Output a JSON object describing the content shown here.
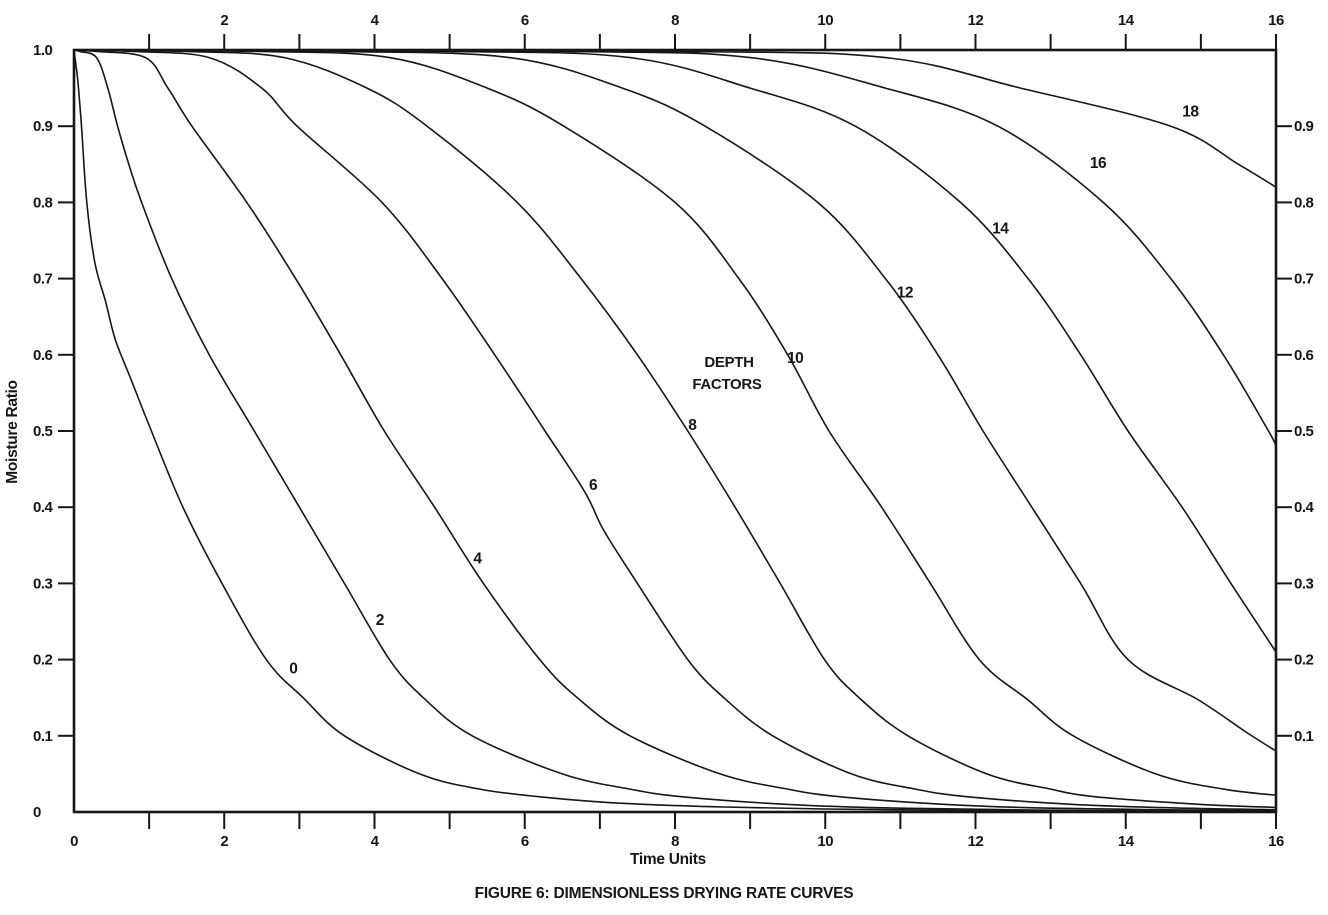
{
  "page": {
    "background": "#ffffff",
    "ink": "#161616"
  },
  "figure": {
    "caption": "FIGURE 6: DIMENSIONLESS DRYING RATE CURVES"
  },
  "chart_data": {
    "type": "line",
    "title": "FIGURE 6: DIMENSIONLESS DRYING RATE CURVES",
    "xlabel": "Time Units",
    "ylabel": "Moisture Ratio",
    "xlim": [
      0,
      16
    ],
    "ylim": [
      0,
      1
    ],
    "grid": false,
    "legend": "none",
    "x_minor_tick_step": 1,
    "x_tick_labels_bottom": [
      "0",
      "2",
      "4",
      "6",
      "8",
      "10",
      "12",
      "14",
      "16"
    ],
    "x_tick_values_bottom": [
      0,
      2,
      4,
      6,
      8,
      10,
      12,
      14,
      16
    ],
    "x_tick_labels_top": [
      "2",
      "4",
      "6",
      "8",
      "10",
      "12",
      "14",
      "16"
    ],
    "x_tick_values_top": [
      2,
      4,
      6,
      8,
      10,
      12,
      14,
      16
    ],
    "y_minor_tick_values": [
      0.1,
      0.2,
      0.3,
      0.4,
      0.5,
      0.6,
      0.7,
      0.8,
      0.9
    ],
    "y_tick_labels_left": [
      {
        "label": "1.0",
        "value": 1.0
      },
      {
        "label": "0.9",
        "value": 0.9
      },
      {
        "label": "0.8",
        "value": 0.8
      },
      {
        "label": "0.7",
        "value": 0.7
      },
      {
        "label": "0.6",
        "value": 0.6
      },
      {
        "label": "0.5",
        "value": 0.5
      },
      {
        "label": "0.4",
        "value": 0.4
      },
      {
        "label": "0.3",
        "value": 0.3
      },
      {
        "label": "0.2",
        "value": 0.2
      },
      {
        "label": "0.1",
        "value": 0.1
      },
      {
        "label": "0",
        "value": 0.0
      }
    ],
    "y_tick_labels_right": [
      {
        "label": "0.9",
        "value": 0.9
      },
      {
        "label": "0.8",
        "value": 0.8
      },
      {
        "label": "0.7",
        "value": 0.7
      },
      {
        "label": "0.6",
        "value": 0.6
      },
      {
        "label": "0.5",
        "value": 0.5
      },
      {
        "label": "0.4",
        "value": 0.4
      },
      {
        "label": "0.3",
        "value": 0.3
      },
      {
        "label": "0.2",
        "value": 0.2
      },
      {
        "label": "0.1",
        "value": 0.1
      }
    ],
    "annotation": {
      "line1": "DEPTH",
      "line2": "FACTORS"
    },
    "series": [
      {
        "name": "depth factor 0",
        "depth_factor": 0,
        "label": "0",
        "label_x": 2.92,
        "label_y": 0.188,
        "points": [
          [
            0,
            1.0
          ],
          [
            0.05,
            0.96
          ],
          [
            0.1,
            0.9
          ],
          [
            0.17,
            0.8
          ],
          [
            0.28,
            0.72
          ],
          [
            0.42,
            0.67
          ],
          [
            0.55,
            0.62
          ],
          [
            0.75,
            0.57
          ],
          [
            1.03,
            0.5
          ],
          [
            1.45,
            0.4
          ],
          [
            1.97,
            0.3
          ],
          [
            2.56,
            0.2
          ],
          [
            3.05,
            0.15
          ],
          [
            3.6,
            0.1
          ],
          [
            4.6,
            0.05
          ],
          [
            5.4,
            0.03
          ],
          [
            6.2,
            0.02
          ],
          [
            7.2,
            0.012
          ],
          [
            8.5,
            0.007
          ],
          [
            10,
            0.004
          ],
          [
            12,
            0.002
          ],
          [
            14,
            0.001
          ],
          [
            16,
            0.001
          ]
        ]
      },
      {
        "name": "depth factor 2",
        "depth_factor": 2,
        "label": "2",
        "label_x": 4.07,
        "label_y": 0.252,
        "points": [
          [
            0,
            1.0
          ],
          [
            0.08,
            0.998
          ],
          [
            0.3,
            0.99
          ],
          [
            0.45,
            0.95
          ],
          [
            0.58,
            0.9
          ],
          [
            0.73,
            0.85
          ],
          [
            0.9,
            0.8
          ],
          [
            1.3,
            0.7
          ],
          [
            1.8,
            0.6
          ],
          [
            2.4,
            0.5
          ],
          [
            3.0,
            0.4
          ],
          [
            3.6,
            0.3
          ],
          [
            4.2,
            0.2
          ],
          [
            4.65,
            0.15
          ],
          [
            5.3,
            0.1
          ],
          [
            6.5,
            0.05
          ],
          [
            7.4,
            0.03
          ],
          [
            8.1,
            0.02
          ],
          [
            9.5,
            0.01
          ],
          [
            11,
            0.005
          ],
          [
            13.5,
            0.002
          ],
          [
            16,
            0.001
          ]
        ]
      },
      {
        "name": "depth factor 4",
        "depth_factor": 4,
        "label": "4",
        "label_x": 5.37,
        "label_y": 0.333,
        "points": [
          [
            0,
            1.0
          ],
          [
            0.3,
            0.998
          ],
          [
            0.95,
            0.99
          ],
          [
            1.25,
            0.95
          ],
          [
            1.57,
            0.9
          ],
          [
            2.3,
            0.8
          ],
          [
            2.95,
            0.7
          ],
          [
            3.55,
            0.6
          ],
          [
            4.13,
            0.5
          ],
          [
            4.8,
            0.4
          ],
          [
            5.45,
            0.3
          ],
          [
            6.2,
            0.2
          ],
          [
            6.7,
            0.15
          ],
          [
            7.4,
            0.1
          ],
          [
            8.6,
            0.05
          ],
          [
            9.5,
            0.03
          ],
          [
            10.2,
            0.02
          ],
          [
            11.6,
            0.01
          ],
          [
            13,
            0.005
          ],
          [
            15.5,
            0.002
          ],
          [
            16,
            0.002
          ]
        ]
      },
      {
        "name": "depth factor 6",
        "depth_factor": 6,
        "label": "6",
        "label_x": 6.91,
        "label_y": 0.429,
        "points": [
          [
            0,
            1.0
          ],
          [
            0.8,
            0.998
          ],
          [
            1.8,
            0.99
          ],
          [
            2.5,
            0.95
          ],
          [
            2.97,
            0.9
          ],
          [
            4.1,
            0.8
          ],
          [
            4.9,
            0.7
          ],
          [
            5.6,
            0.6
          ],
          [
            6.27,
            0.5
          ],
          [
            6.8,
            0.42
          ],
          [
            7.05,
            0.37
          ],
          [
            7.5,
            0.3
          ],
          [
            8.17,
            0.2
          ],
          [
            8.65,
            0.15
          ],
          [
            9.3,
            0.1
          ],
          [
            10.35,
            0.05
          ],
          [
            11.2,
            0.03
          ],
          [
            11.9,
            0.02
          ],
          [
            13.3,
            0.01
          ],
          [
            14.8,
            0.005
          ],
          [
            16,
            0.003
          ]
        ]
      },
      {
        "name": "depth factor 8",
        "depth_factor": 8,
        "label": "8",
        "label_x": 8.23,
        "label_y": 0.508,
        "points": [
          [
            0,
            1.0
          ],
          [
            1.5,
            0.998
          ],
          [
            2.8,
            0.99
          ],
          [
            3.9,
            0.95
          ],
          [
            4.7,
            0.9
          ],
          [
            5.9,
            0.8
          ],
          [
            6.75,
            0.7
          ],
          [
            7.5,
            0.6
          ],
          [
            8.17,
            0.5
          ],
          [
            8.8,
            0.4
          ],
          [
            9.4,
            0.3
          ],
          [
            9.99,
            0.2
          ],
          [
            10.45,
            0.15
          ],
          [
            11.1,
            0.1
          ],
          [
            12.15,
            0.05
          ],
          [
            13.0,
            0.03
          ],
          [
            13.6,
            0.02
          ],
          [
            15.0,
            0.01
          ],
          [
            16,
            0.006
          ]
        ]
      },
      {
        "name": "depth factor 10",
        "depth_factor": 10,
        "label": "10",
        "label_x": 9.6,
        "label_y": 0.596,
        "points": [
          [
            0,
            1.0
          ],
          [
            2.5,
            0.998
          ],
          [
            4.2,
            0.99
          ],
          [
            5.5,
            0.95
          ],
          [
            6.52,
            0.9
          ],
          [
            8.0,
            0.8
          ],
          [
            8.85,
            0.7
          ],
          [
            9.5,
            0.6
          ],
          [
            10.05,
            0.5
          ],
          [
            10.75,
            0.4
          ],
          [
            11.4,
            0.3
          ],
          [
            12.05,
            0.2
          ],
          [
            12.7,
            0.147
          ],
          [
            13.3,
            0.1
          ],
          [
            14.4,
            0.05
          ],
          [
            15.3,
            0.03
          ],
          [
            16,
            0.022
          ]
        ]
      },
      {
        "name": "depth factor 12",
        "depth_factor": 12,
        "label": "12",
        "label_x": 11.06,
        "label_y": 0.682,
        "points": [
          [
            0,
            1.0
          ],
          [
            3.5,
            0.998
          ],
          [
            5.8,
            0.99
          ],
          [
            7.3,
            0.95
          ],
          [
            8.4,
            0.9
          ],
          [
            9.9,
            0.8
          ],
          [
            10.8,
            0.7
          ],
          [
            11.5,
            0.6
          ],
          [
            12.1,
            0.5
          ],
          [
            12.75,
            0.4
          ],
          [
            13.4,
            0.3
          ],
          [
            14.03,
            0.2
          ],
          [
            14.97,
            0.147
          ],
          [
            15.6,
            0.105
          ],
          [
            16,
            0.08
          ]
        ]
      },
      {
        "name": "depth factor 14",
        "depth_factor": 14,
        "label": "14",
        "label_x": 12.33,
        "label_y": 0.766,
        "points": [
          [
            0,
            1.0
          ],
          [
            5.0,
            0.998
          ],
          [
            7.4,
            0.99
          ],
          [
            9.0,
            0.95
          ],
          [
            10.4,
            0.9
          ],
          [
            11.8,
            0.8
          ],
          [
            12.7,
            0.7
          ],
          [
            13.4,
            0.6
          ],
          [
            14.03,
            0.5
          ],
          [
            14.75,
            0.4
          ],
          [
            15.4,
            0.3
          ],
          [
            16,
            0.21
          ]
        ]
      },
      {
        "name": "depth factor 16",
        "depth_factor": 16,
        "label": "16",
        "label_x": 13.63,
        "label_y": 0.852,
        "points": [
          [
            0,
            1.0
          ],
          [
            6.5,
            0.998
          ],
          [
            9.0,
            0.99
          ],
          [
            10.8,
            0.95
          ],
          [
            12.3,
            0.9
          ],
          [
            13.7,
            0.8
          ],
          [
            14.6,
            0.7
          ],
          [
            15.3,
            0.6
          ],
          [
            15.9,
            0.5
          ],
          [
            16,
            0.48
          ]
        ]
      },
      {
        "name": "depth factor 18",
        "depth_factor": 18,
        "label": "18",
        "label_x": 14.86,
        "label_y": 0.919,
        "points": [
          [
            0,
            1.0
          ],
          [
            8.0,
            0.998
          ],
          [
            10.8,
            0.99
          ],
          [
            12.6,
            0.95
          ],
          [
            14.6,
            0.9
          ],
          [
            15.5,
            0.85
          ],
          [
            16,
            0.82
          ]
        ]
      }
    ]
  }
}
